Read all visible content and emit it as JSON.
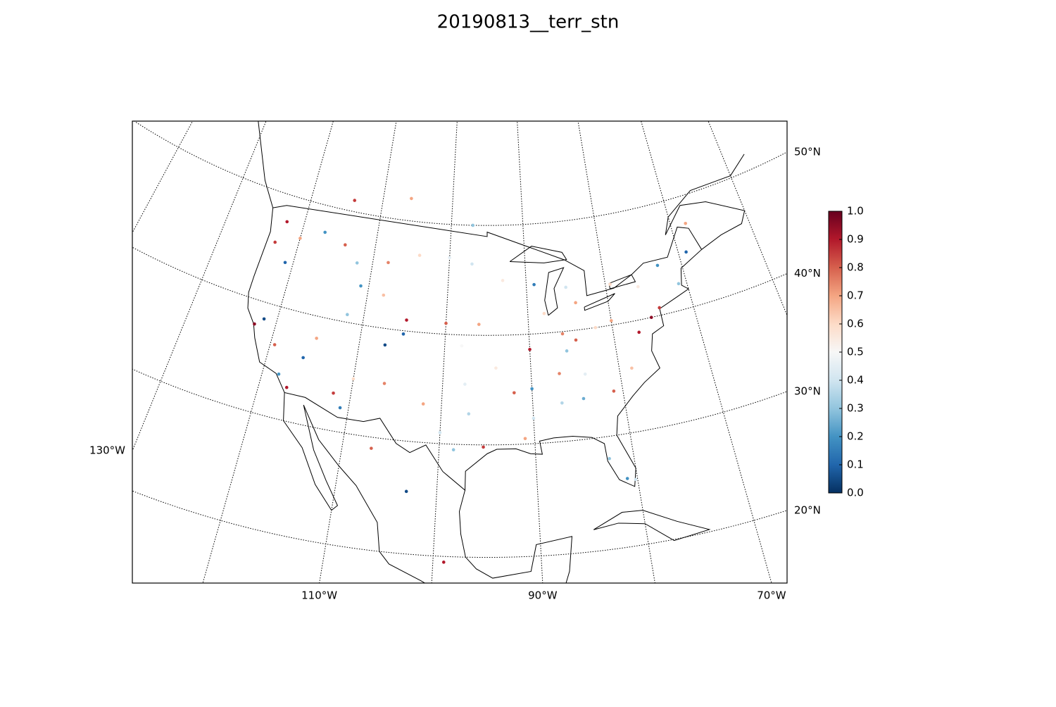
{
  "chart_data": {
    "type": "scatter",
    "title": "20190813__terr_stn",
    "x": [
      -122.3,
      -123,
      -121,
      -120,
      -117,
      -114,
      -112,
      -108,
      -104,
      -100,
      -97,
      -93,
      -89,
      -85,
      -84,
      -122.4,
      -121.5,
      -119.5,
      -118.2,
      -117,
      -116,
      -115,
      -112,
      -111.9,
      -110,
      -106.5,
      -105,
      -107,
      -104.8,
      -108,
      -111,
      -100,
      -98,
      -96,
      -97.5,
      -97,
      -98.5,
      -95.4,
      -100,
      -102,
      -94,
      -92,
      -90,
      -90,
      -88,
      -86,
      -84.4,
      -86.8,
      -90,
      -91,
      -82.5,
      -81,
      -80.2,
      -81,
      -78.6,
      -77,
      -75.2,
      -74,
      -71,
      -73,
      -76,
      -80,
      -82,
      -84.5,
      -85.7,
      -86.8,
      -83.9,
      -69,
      -99,
      -103,
      -107,
      -110.9,
      -68,
      -79.4,
      -114,
      -97,
      -106
    ],
    "y": [
      47.6,
      45.5,
      44,
      46.5,
      47.6,
      46.9,
      45.5,
      46,
      47,
      47,
      46.5,
      45,
      44.5,
      44,
      42.5,
      37.8,
      38.5,
      36.5,
      34,
      33,
      36,
      38,
      40.7,
      33.4,
      35,
      35,
      39.7,
      38.5,
      41,
      43,
      43.5,
      41,
      39,
      41,
      35.5,
      32.8,
      29.5,
      29.8,
      31,
      33.5,
      37,
      34.7,
      38.6,
      35,
      41.8,
      39.8,
      33.7,
      33.5,
      32.3,
      30.5,
      28,
      26,
      25.8,
      34,
      35.8,
      38.9,
      40,
      40.7,
      42.4,
      44.5,
      43,
      40.4,
      40,
      39.1,
      38.2,
      36.2,
      35.9,
      45,
      19.5,
      25.5,
      29,
      32.2,
      47.5,
      43.7,
      51,
      50,
      52
    ],
    "values": [
      0.9,
      0.85,
      0.1,
      0.7,
      0.2,
      0.8,
      0.3,
      0.75,
      0.6,
      0.45,
      0.4,
      0.55,
      0.15,
      0.4,
      0.7,
      0.95,
      0.05,
      0.8,
      0.2,
      0.9,
      0.1,
      0.7,
      0.3,
      0.85,
      0.6,
      0.75,
      0.1,
      0.05,
      0.9,
      0.65,
      0.2,
      0.8,
      0.5,
      0.7,
      0.45,
      0.35,
      0.3,
      0.85,
      0.4,
      0.7,
      0.55,
      0.8,
      0.9,
      0.2,
      0.6,
      0.75,
      0.25,
      0.35,
      0.4,
      0.7,
      0.3,
      0.2,
      0.4,
      0.8,
      0.65,
      0.9,
      0.95,
      0.85,
      0.3,
      0.2,
      0.55,
      0.7,
      0.6,
      0.8,
      0.3,
      0.75,
      0.45,
      0.1,
      0.9,
      0.05,
      0.8,
      0.15,
      0.7,
      0.6,
      0.85,
      0.3,
      0.7
    ],
    "parallels": [
      {
        "value": 50,
        "label": "50°N"
      },
      {
        "value": 40,
        "label": "40°N"
      },
      {
        "value": 30,
        "label": "30°N"
      },
      {
        "value": 20,
        "label": "20°N"
      }
    ],
    "meridians": [
      {
        "value": -130,
        "label": "130°W"
      },
      {
        "value": -110,
        "label": "110°W"
      },
      {
        "value": -90,
        "label": "90°W"
      },
      {
        "value": -70,
        "label": "70°W"
      }
    ],
    "colorbar": {
      "colormap": "RdBu_r",
      "lim": [
        0,
        1
      ],
      "ticks": [
        {
          "value": 0,
          "label": "0.0"
        },
        0.1,
        0.2,
        0.3,
        0.4,
        0.5,
        0.6,
        0.7,
        0.8,
        0.9,
        {
          "value": 1,
          "label": "1.0"
        }
      ]
    }
  }
}
